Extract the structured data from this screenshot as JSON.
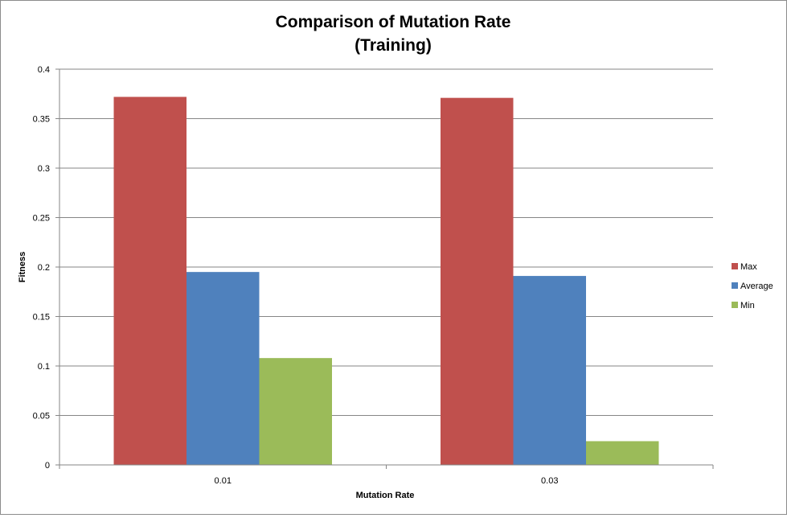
{
  "chart_data": {
    "type": "bar",
    "title": [
      "Comparison of Mutation Rate",
      "(Training)"
    ],
    "xlabel": "Mutation Rate",
    "ylabel": "Fitness",
    "categories": [
      "0.01",
      "0.03"
    ],
    "series": [
      {
        "name": "Max",
        "color": "#c0504d",
        "values": [
          0.372,
          0.371
        ]
      },
      {
        "name": "Average",
        "color": "#4f81bd",
        "values": [
          0.195,
          0.191
        ]
      },
      {
        "name": "Min",
        "color": "#9bbb59",
        "values": [
          0.108,
          0.024
        ]
      }
    ],
    "ylim": [
      0,
      0.4
    ],
    "yticks": [
      "0",
      "0.05",
      "0.1",
      "0.15",
      "0.2",
      "0.25",
      "0.3",
      "0.35",
      "0.4"
    ],
    "grid": true,
    "legend_position": "right"
  }
}
